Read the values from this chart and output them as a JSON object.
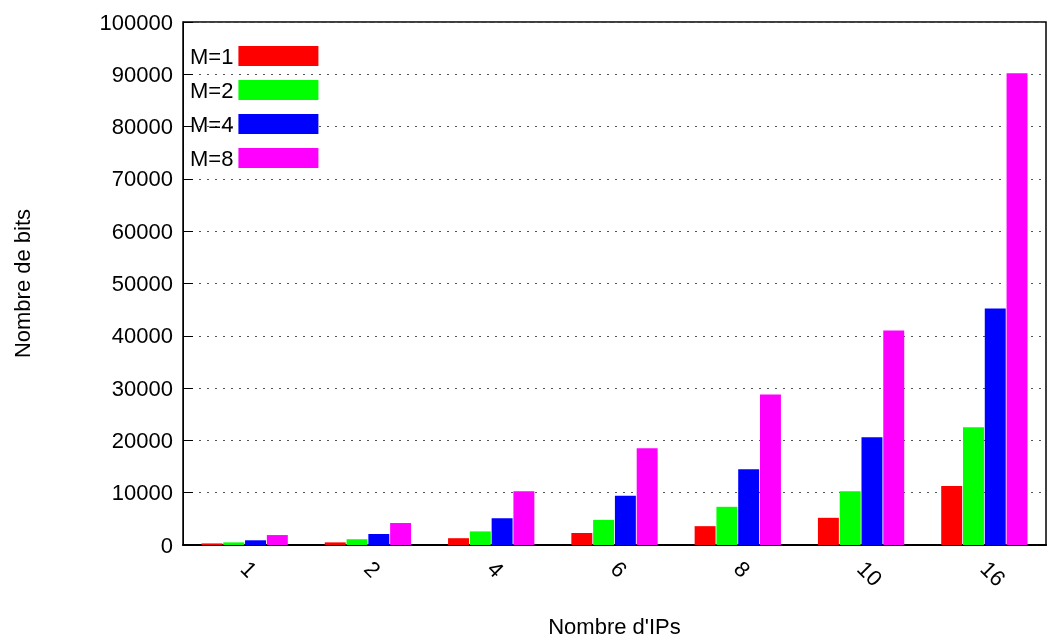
{
  "chart_data": {
    "type": "bar",
    "xlabel": "Nombre d'IPs",
    "ylabel": "Nombre de bits",
    "categories": [
      "1",
      "2",
      "4",
      "6",
      "8",
      "10",
      "16"
    ],
    "series": [
      {
        "name": "M=1",
        "color": "#ff0000",
        "values": [
          300,
          500,
          1300,
          2300,
          3600,
          5200,
          11300
        ]
      },
      {
        "name": "M=2",
        "color": "#00ff00",
        "values": [
          500,
          1100,
          2600,
          4800,
          7300,
          10300,
          22500
        ]
      },
      {
        "name": "M=4",
        "color": "#0000ff",
        "values": [
          900,
          2100,
          5100,
          9400,
          14500,
          20600,
          45200
        ]
      },
      {
        "name": "M=8",
        "color": "#ff00ff",
        "values": [
          1900,
          4200,
          10300,
          18500,
          28800,
          41000,
          90200
        ]
      }
    ],
    "ylim": [
      0,
      100000
    ],
    "yticks": [
      0,
      10000,
      20000,
      30000,
      40000,
      50000,
      60000,
      70000,
      80000,
      90000,
      100000
    ],
    "grid": "y",
    "legend": "top left"
  }
}
